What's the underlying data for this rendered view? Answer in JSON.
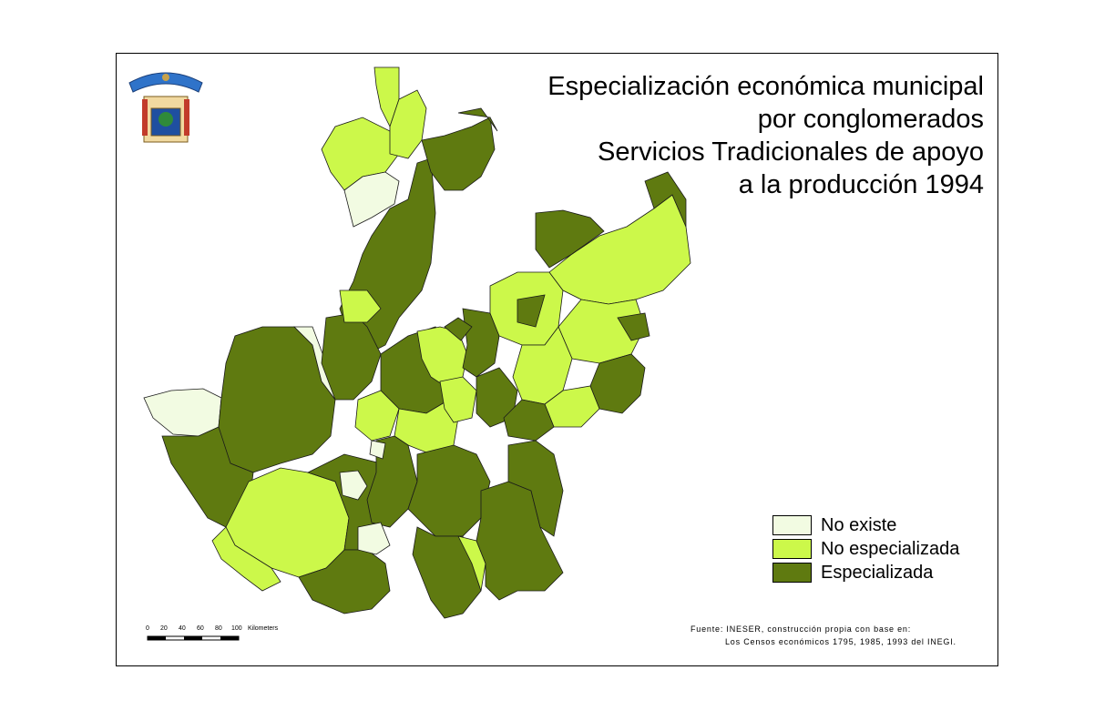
{
  "title": {
    "lines": [
      "Especialización económica municipal",
      "por conglomerados",
      "Servicios Tradicionales de apoyo",
      "a la producción 1994"
    ]
  },
  "legend": {
    "items": [
      {
        "label": "No existe",
        "color": "#f2fbe2"
      },
      {
        "label": "No especializada",
        "color": "#ccf84a"
      },
      {
        "label": "Especializada",
        "color": "#5f7a10"
      }
    ]
  },
  "scale": {
    "ticks": [
      "0",
      "20",
      "40",
      "60",
      "80",
      "100"
    ],
    "unit": "Kilometers"
  },
  "source": {
    "line1": "Fuente: INESER, construcción propia con base en:",
    "line2": "Los Censos económicos 1795, 1985, 1993 del INEGI."
  },
  "colors": {
    "no_existe": "#f2fbe2",
    "no_especializada": "#ccf84a",
    "especializada": "#5f7a10",
    "border": "#1a1a1a"
  }
}
